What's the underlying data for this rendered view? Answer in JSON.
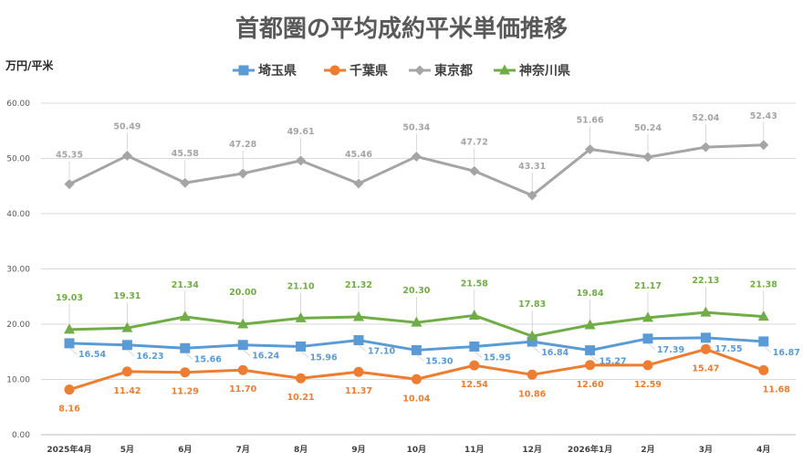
{
  "chart_data": {
    "type": "line",
    "title": "首都圏の平均成約平米単価推移",
    "ylabel": "万円/平米",
    "xlabel": "",
    "ylim": [
      0,
      60
    ],
    "yticks": [
      "0.00",
      "10.00",
      "20.00",
      "30.00",
      "40.00",
      "50.00",
      "60.00"
    ],
    "grid": true,
    "legend_position": "top",
    "categories": [
      "2025年4月",
      "5月",
      "6月",
      "7月",
      "8月",
      "9月",
      "10月",
      "11月",
      "12月",
      "2026年1月",
      "2月",
      "3月",
      "4月"
    ],
    "series": [
      {
        "name": "埼玉県",
        "color": "#5b9bd5",
        "marker": "square",
        "values": [
          16.54,
          16.23,
          15.66,
          16.24,
          15.96,
          17.1,
          15.3,
          15.95,
          16.84,
          15.27,
          17.39,
          17.55,
          16.87
        ],
        "labels": [
          "16.54",
          "16.23",
          "15.66",
          "16.24",
          "15.96",
          "17.10",
          "15.30",
          "15.95",
          "16.84",
          "15.27",
          "17.39",
          "17.55",
          "16.87"
        ]
      },
      {
        "name": "千葉県",
        "color": "#ed7d31",
        "marker": "circle",
        "values": [
          8.16,
          11.42,
          11.29,
          11.7,
          10.21,
          11.37,
          10.04,
          12.54,
          10.86,
          12.6,
          12.59,
          15.47,
          11.68
        ],
        "labels": [
          "8.16",
          "11.42",
          "11.29",
          "11.70",
          "10.21",
          "11.37",
          "10.04",
          "12.54",
          "10.86",
          "12.60",
          "12.59",
          "15.47",
          "11.68"
        ]
      },
      {
        "name": "東京都",
        "color": "#a5a5a5",
        "marker": "diamond",
        "values": [
          45.35,
          50.49,
          45.58,
          47.28,
          49.61,
          45.46,
          50.34,
          47.72,
          43.31,
          51.66,
          50.24,
          52.04,
          52.43
        ],
        "labels": [
          "45.35",
          "50.49",
          "45.58",
          "47.28",
          "49.61",
          "45.46",
          "50.34",
          "47.72",
          "43.31",
          "51.66",
          "50.24",
          "52.04",
          "52.43"
        ]
      },
      {
        "name": "神奈川県",
        "color": "#70ad47",
        "marker": "triangle",
        "values": [
          19.03,
          19.31,
          21.34,
          20.0,
          21.1,
          21.32,
          20.3,
          21.58,
          17.83,
          19.84,
          21.17,
          22.13,
          21.38
        ],
        "labels": [
          "19.03",
          "19.31",
          "21.34",
          "20.00",
          "21.10",
          "21.32",
          "20.30",
          "21.58",
          "17.83",
          "19.84",
          "21.17",
          "22.13",
          "21.38"
        ]
      }
    ]
  }
}
